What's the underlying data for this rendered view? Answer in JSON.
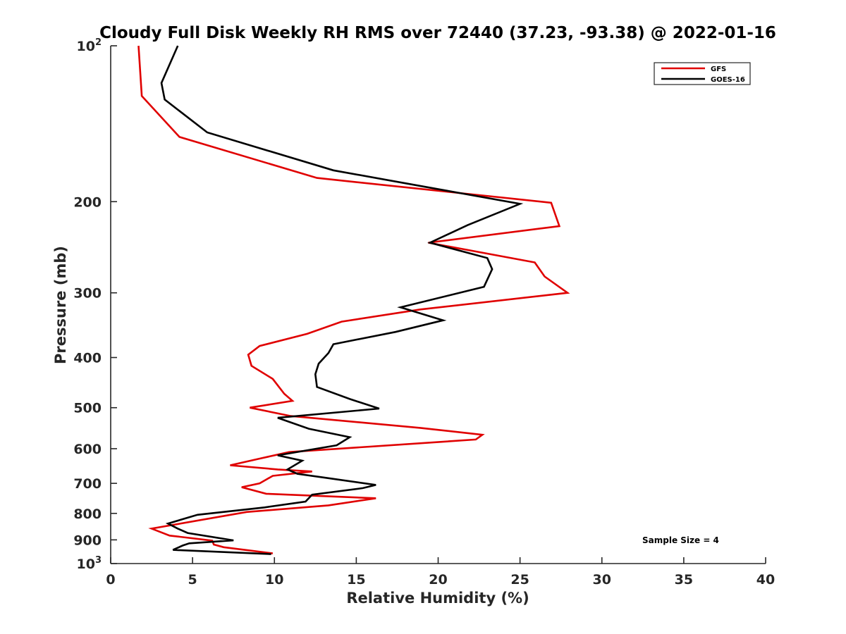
{
  "chart_data": {
    "type": "line",
    "title": "Cloudy Full Disk Weekly RH RMS over 72440 (37.23, -93.38) @ 2022-01-16",
    "xlabel": "Relative Humidity (%)",
    "ylabel": "Pressure (mb)",
    "xlim": [
      0,
      40
    ],
    "ylim": [
      100,
      1000
    ],
    "y_scale": "log",
    "y_reversed": true,
    "x_ticks": [
      "0",
      "5",
      "10",
      "15",
      "20",
      "25",
      "30",
      "35",
      "40"
    ],
    "y_ticks": [
      {
        "value": 100,
        "base": "10",
        "exp": "2"
      },
      {
        "value": 200,
        "label": "200"
      },
      {
        "value": 300,
        "label": "300"
      },
      {
        "value": 400,
        "label": "400"
      },
      {
        "value": 500,
        "label": "500"
      },
      {
        "value": 600,
        "label": "600"
      },
      {
        "value": 700,
        "label": "700"
      },
      {
        "value": 800,
        "label": "800"
      },
      {
        "value": 900,
        "label": "900"
      },
      {
        "value": 1000,
        "base": "10",
        "exp": "3"
      }
    ],
    "legend_position": "top-right",
    "grid": false,
    "annotation": "Sample Size = 4",
    "series": [
      {
        "name": "GFS",
        "color": "#e00000",
        "points": [
          [
            1.7,
            100
          ],
          [
            1.9,
            125
          ],
          [
            4.2,
            150
          ],
          [
            12.6,
            180
          ],
          [
            26.9,
            201
          ],
          [
            27.4,
            223
          ],
          [
            19.4,
            240
          ],
          [
            25.9,
            262
          ],
          [
            26.5,
            279
          ],
          [
            27.9,
            300
          ],
          [
            18.9,
            323
          ],
          [
            14.1,
            341
          ],
          [
            12.0,
            360
          ],
          [
            9.1,
            380
          ],
          [
            8.4,
            395
          ],
          [
            8.6,
            415
          ],
          [
            9.9,
            440
          ],
          [
            10.6,
            470
          ],
          [
            11.1,
            485
          ],
          [
            8.5,
            500
          ],
          [
            11.0,
            519
          ],
          [
            18.9,
            547
          ],
          [
            22.7,
            564
          ],
          [
            22.3,
            576
          ],
          [
            10.9,
            609
          ],
          [
            9.2,
            626
          ],
          [
            7.3,
            646
          ],
          [
            10.2,
            658
          ],
          [
            12.3,
            664
          ],
          [
            9.9,
            677
          ],
          [
            9.1,
            700
          ],
          [
            8.0,
            712
          ],
          [
            9.5,
            733
          ],
          [
            16.2,
            748
          ],
          [
            13.3,
            772
          ],
          [
            8.3,
            795
          ],
          [
            2.5,
            856
          ],
          [
            3.6,
            883
          ],
          [
            6.2,
            903
          ],
          [
            6.3,
            919
          ],
          [
            6.9,
            930
          ],
          [
            9.9,
            956
          ]
        ]
      },
      {
        "name": "GOES-16",
        "color": "#000000",
        "points": [
          [
            4.1,
            100
          ],
          [
            3.1,
            118
          ],
          [
            3.3,
            127
          ],
          [
            5.9,
            147
          ],
          [
            13.6,
            174
          ],
          [
            25.0,
            202
          ],
          [
            21.8,
            222
          ],
          [
            19.5,
            240
          ],
          [
            23.0,
            257
          ],
          [
            23.3,
            270
          ],
          [
            22.8,
            292
          ],
          [
            17.7,
            320
          ],
          [
            20.3,
            339
          ],
          [
            17.4,
            357
          ],
          [
            13.6,
            377
          ],
          [
            13.3,
            392
          ],
          [
            12.7,
            411
          ],
          [
            12.5,
            431
          ],
          [
            12.6,
            456
          ],
          [
            14.6,
            481
          ],
          [
            16.4,
            502
          ],
          [
            10.2,
            523
          ],
          [
            12.1,
            549
          ],
          [
            14.6,
            570
          ],
          [
            13.8,
            591
          ],
          [
            10.2,
            618
          ],
          [
            11.7,
            633
          ],
          [
            10.8,
            658
          ],
          [
            11.4,
            671
          ],
          [
            13.0,
            682
          ],
          [
            16.2,
            705
          ],
          [
            15.4,
            715
          ],
          [
            12.3,
            736
          ],
          [
            11.9,
            759
          ],
          [
            9.4,
            779
          ],
          [
            5.3,
            805
          ],
          [
            3.5,
            837
          ],
          [
            4.1,
            856
          ],
          [
            4.7,
            873
          ],
          [
            7.5,
            902
          ],
          [
            4.8,
            914
          ],
          [
            4.4,
            923
          ],
          [
            3.8,
            941
          ],
          [
            9.8,
            959
          ]
        ]
      }
    ]
  }
}
